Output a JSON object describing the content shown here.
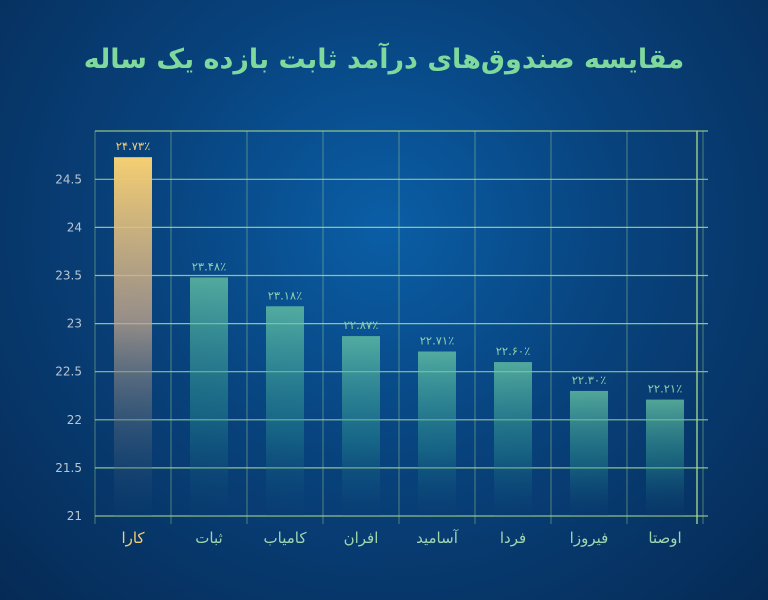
{
  "title": "مقایسه صندوق‌های درآمد ثابت بازده یک ساله",
  "chart_data": {
    "type": "bar",
    "title": "مقایسه صندوق‌های درآمد ثابت بازده یک ساله",
    "xlabel": "",
    "ylabel": "",
    "categories": [
      "کارا",
      "ثبات",
      "کامیاب",
      "افران",
      "آسامید",
      "فردا",
      "فیروزا",
      "اوصتا"
    ],
    "values": [
      24.73,
      23.48,
      23.18,
      22.87,
      22.71,
      22.6,
      22.3,
      22.21
    ],
    "value_labels": [
      "۲۴.۷۳٪",
      "۲۳.۴۸٪",
      "۲۳.۱۸٪",
      "۲۲.۸۷٪",
      "۲۲.۷۱٪",
      "۲۲.۶۰٪",
      "۲۲.۳۰٪",
      "۲۲.۲۱٪"
    ],
    "ylim": [
      21,
      25
    ],
    "yticks": [
      21,
      21.5,
      22,
      22.5,
      23,
      23.5,
      24,
      24.5
    ],
    "ytick_labels": [
      "21",
      "21.5",
      "22",
      "22.5",
      "23",
      "23.5",
      "24",
      "24.5"
    ],
    "grid": true,
    "highlight_index": 0,
    "colors": {
      "highlight": "#f5cf72",
      "bar": "#6fcfa6",
      "grid": "#a8d98a",
      "title": "#7fd99c"
    }
  }
}
